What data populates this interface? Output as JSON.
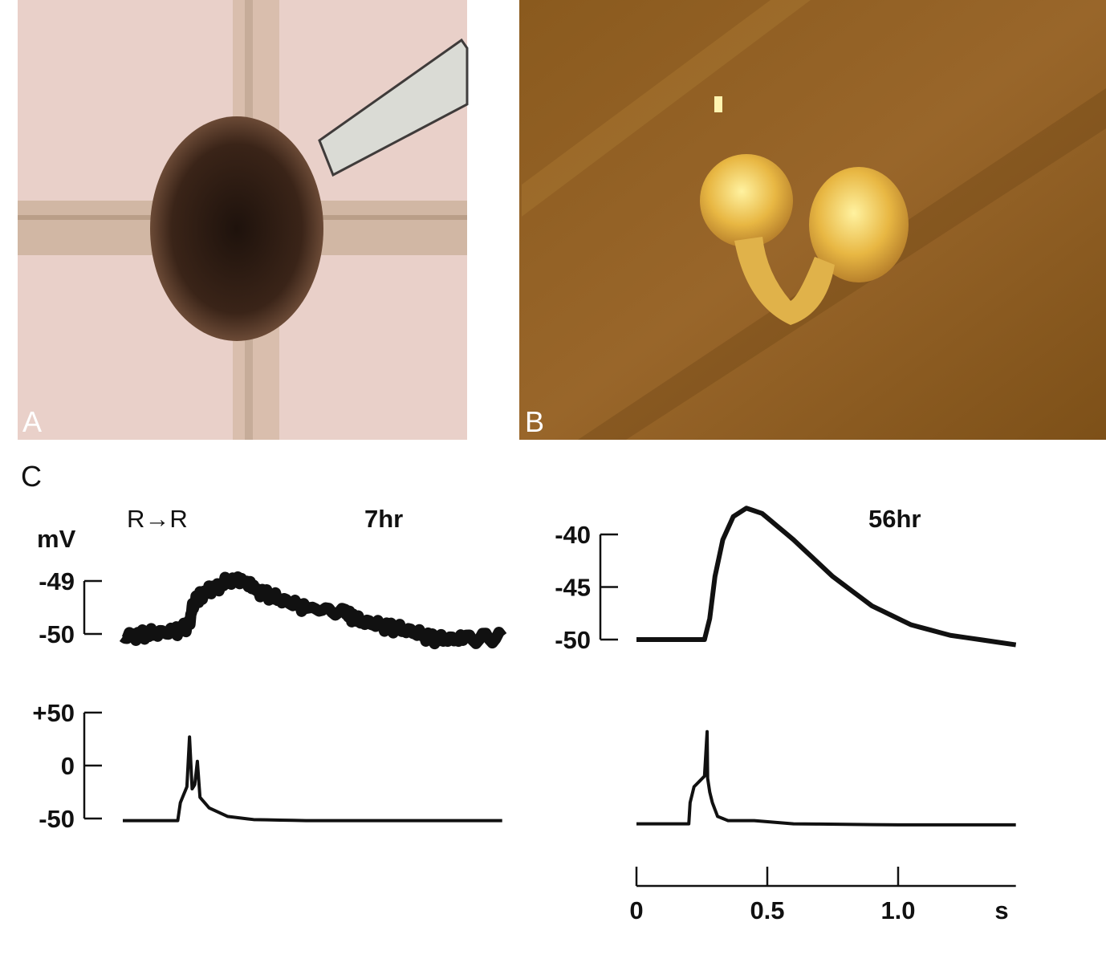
{
  "panels": {
    "a": "A",
    "b": "B",
    "c": "C"
  },
  "colors": {
    "photo_a_bg": "#e9d0c9",
    "photo_b_bg": "#8f5e22",
    "trace": "#111111"
  },
  "chart_data": [
    {
      "type": "line",
      "title": "R→R",
      "annotation": "7hr",
      "ylabel": "mV",
      "xlim": [
        0,
        1.45
      ],
      "grid": false,
      "top": {
        "ylim": [
          -50,
          -49
        ],
        "yticks": [
          "-49",
          "-50"
        ],
        "ytick_values": [
          -49,
          -50
        ],
        "x": [
          0,
          0.1,
          0.2,
          0.25,
          0.27,
          0.3,
          0.35,
          0.42,
          0.5,
          0.6,
          0.7,
          0.85,
          0.9,
          1.0,
          1.1,
          1.2,
          1.3,
          1.45
        ],
        "y": [
          -50.05,
          -50.0,
          -49.95,
          -49.85,
          -49.45,
          -49.25,
          -49.15,
          -48.95,
          -49.15,
          -49.35,
          -49.5,
          -49.6,
          -49.75,
          -49.85,
          -49.95,
          -50.1,
          -50.1,
          -50.05
        ]
      },
      "bottom": {
        "ylim": [
          -50,
          50
        ],
        "yticks": [
          "+50",
          "0",
          "-50"
        ],
        "ytick_values": [
          50,
          0,
          -50
        ],
        "x": [
          0,
          0.21,
          0.22,
          0.245,
          0.255,
          0.265,
          0.275,
          0.285,
          0.295,
          0.33,
          0.4,
          0.5,
          0.7,
          1.0,
          1.45
        ],
        "y": [
          -52,
          -52,
          -35,
          -20,
          27,
          -22,
          -18,
          4,
          -30,
          -40,
          -48,
          -51,
          -52,
          -52,
          -52
        ]
      }
    },
    {
      "type": "line",
      "annotation": "56hr",
      "xlim": [
        0,
        1.45
      ],
      "xticks": [
        "0",
        "0.5",
        "1.0"
      ],
      "xtick_values": [
        0,
        0.5,
        1.0
      ],
      "xunit": "s",
      "grid": false,
      "top": {
        "ylim": [
          -50,
          -40
        ],
        "yticks": [
          "-40",
          "-45",
          "-50"
        ],
        "ytick_values": [
          -40,
          -45,
          -50
        ],
        "x": [
          0,
          0.2,
          0.26,
          0.28,
          0.3,
          0.33,
          0.37,
          0.42,
          0.48,
          0.6,
          0.75,
          0.9,
          1.05,
          1.2,
          1.45
        ],
        "y": [
          -50,
          -50,
          -50,
          -48,
          -44,
          -40.5,
          -38.3,
          -37.5,
          -38,
          -40.5,
          -44,
          -46.8,
          -48.6,
          -49.6,
          -50.5
        ]
      },
      "bottom": {
        "ylim": [
          -50,
          50
        ],
        "x": [
          0,
          0.2,
          0.205,
          0.22,
          0.26,
          0.27,
          0.272,
          0.28,
          0.29,
          0.31,
          0.35,
          0.45,
          0.6,
          1.0,
          1.45
        ],
        "y": [
          -55,
          -55,
          -35,
          -20,
          -10,
          32,
          -12,
          -25,
          -35,
          -48,
          -52,
          -52,
          -55,
          -56,
          -56
        ]
      }
    }
  ]
}
